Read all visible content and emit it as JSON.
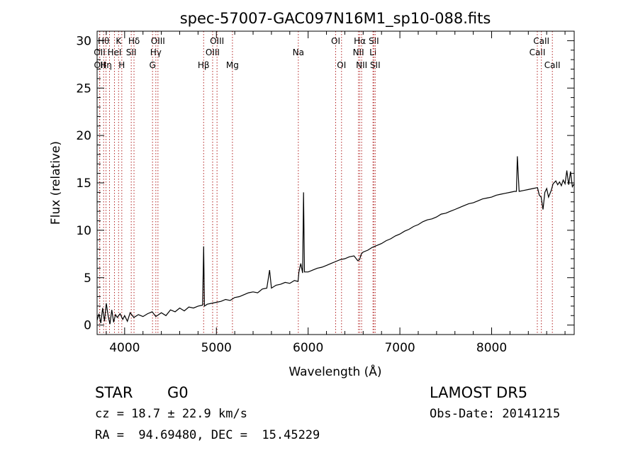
{
  "chart_data": {
    "type": "line",
    "title": "spec-57007-GAC097N16M1_sp10-088.fits",
    "xlabel": "Wavelength (Å)",
    "ylabel": "Flux (relative)",
    "xlim": [
      3700,
      8900
    ],
    "ylim": [
      -1,
      31
    ],
    "xticks": [
      4000,
      5000,
      6000,
      7000,
      8000
    ],
    "yticks": [
      0,
      5,
      10,
      15,
      20,
      25,
      30
    ],
    "line_color": "#000000",
    "marker_color": "#b22222",
    "grid": false,
    "series": [
      {
        "x": [
          3700,
          3720,
          3740,
          3760,
          3780,
          3800,
          3820,
          3840,
          3860,
          3880,
          3900,
          3920,
          3950,
          3980,
          4000,
          4030,
          4060,
          4100,
          4150,
          4200,
          4250,
          4300,
          4340,
          4400,
          4450,
          4500,
          4550,
          4600,
          4650,
          4700,
          4750,
          4800,
          4850,
          4861,
          4870,
          4900,
          4950,
          5000,
          5050,
          5100,
          5150,
          5200,
          5250,
          5300,
          5350,
          5400,
          5450,
          5500,
          5550,
          5580,
          5600,
          5650,
          5700,
          5750,
          5800,
          5850,
          5890,
          5900,
          5920,
          5940,
          5950,
          5960,
          6000,
          6050,
          6100,
          6150,
          6200,
          6250,
          6300,
          6350,
          6400,
          6450,
          6500,
          6540,
          6560,
          6580,
          6600,
          6650,
          6700,
          6750,
          6800,
          6850,
          6900,
          6950,
          7000,
          7050,
          7100,
          7150,
          7200,
          7250,
          7300,
          7350,
          7400,
          7450,
          7500,
          7550,
          7600,
          7650,
          7700,
          7750,
          7800,
          7850,
          7900,
          7950,
          8000,
          8050,
          8100,
          8150,
          8200,
          8250,
          8270,
          8280,
          8300,
          8350,
          8400,
          8450,
          8500,
          8520,
          8540,
          8560,
          8580,
          8600,
          8620,
          8650,
          8670,
          8700,
          8720,
          8740,
          8760,
          8780,
          8800,
          8820,
          8840,
          8860,
          8880,
          8900
        ],
        "y": [
          0.5,
          1.2,
          0.2,
          1.8,
          0.4,
          2.3,
          1.0,
          0.1,
          1.6,
          0.3,
          1.1,
          0.8,
          1.2,
          0.6,
          1.0,
          0.4,
          1.3,
          0.8,
          1.1,
          0.9,
          1.2,
          1.4,
          0.9,
          1.3,
          1.0,
          1.6,
          1.4,
          1.8,
          1.5,
          1.9,
          1.8,
          2.0,
          2.1,
          8.3,
          2.0,
          2.2,
          2.3,
          2.4,
          2.5,
          2.7,
          2.6,
          2.9,
          3.0,
          3.2,
          3.4,
          3.5,
          3.4,
          3.8,
          3.9,
          5.8,
          3.9,
          4.2,
          4.3,
          4.5,
          4.4,
          4.7,
          4.6,
          5.6,
          6.5,
          5.5,
          14.0,
          5.6,
          5.6,
          5.8,
          6.0,
          6.1,
          6.3,
          6.5,
          6.7,
          6.9,
          7.0,
          7.2,
          7.3,
          6.8,
          6.9,
          7.5,
          7.7,
          7.9,
          8.2,
          8.4,
          8.6,
          8.9,
          9.1,
          9.4,
          9.6,
          9.9,
          10.1,
          10.4,
          10.6,
          10.9,
          11.1,
          11.2,
          11.4,
          11.7,
          11.8,
          12.0,
          12.2,
          12.4,
          12.6,
          12.8,
          12.9,
          13.1,
          13.3,
          13.4,
          13.5,
          13.7,
          13.8,
          13.9,
          14.0,
          14.1,
          14.1,
          17.8,
          14.1,
          14.2,
          14.3,
          14.4,
          14.5,
          13.7,
          13.5,
          12.2,
          14.0,
          14.4,
          13.5,
          14.2,
          14.9,
          15.2,
          14.8,
          15.1,
          14.7,
          15.3,
          14.9,
          16.3,
          14.8,
          16.2,
          14.6,
          14.9
        ]
      }
    ],
    "line_markers": [
      {
        "x": 3727,
        "label": "OII",
        "row": 2
      },
      {
        "x": 3729,
        "label": "OII",
        "row": 3
      },
      {
        "x": 3771,
        "label": "Hθ",
        "row": 1
      },
      {
        "x": 3797,
        "label": "Hη",
        "row": 3
      },
      {
        "x": 3835,
        "label": "",
        "row": 0
      },
      {
        "x": 3889,
        "label": "HeI",
        "row": 2
      },
      {
        "x": 3934,
        "label": "K",
        "row": 1
      },
      {
        "x": 3969,
        "label": "H",
        "row": 3
      },
      {
        "x": 4072,
        "label": "SII",
        "row": 2
      },
      {
        "x": 4102,
        "label": "Hδ",
        "row": 1
      },
      {
        "x": 4304,
        "label": "G",
        "row": 3
      },
      {
        "x": 4340,
        "label": "Hγ",
        "row": 2
      },
      {
        "x": 4363,
        "label": "OIII",
        "row": 1
      },
      {
        "x": 4861,
        "label": "Hβ",
        "row": 3
      },
      {
        "x": 4959,
        "label": "OIII",
        "row": 2
      },
      {
        "x": 5007,
        "label": "OIII",
        "row": 1
      },
      {
        "x": 5175,
        "label": "Mg",
        "row": 3
      },
      {
        "x": 5893,
        "label": "Na",
        "row": 2
      },
      {
        "x": 6300,
        "label": "OI",
        "row": 1
      },
      {
        "x": 6364,
        "label": "OI",
        "row": 3
      },
      {
        "x": 6548,
        "label": "NII",
        "row": 2
      },
      {
        "x": 6563,
        "label": "Hα",
        "row": 1
      },
      {
        "x": 6583,
        "label": "NII",
        "row": 3
      },
      {
        "x": 6707,
        "label": "Li",
        "row": 2
      },
      {
        "x": 6716,
        "label": "SII",
        "row": 1
      },
      {
        "x": 6731,
        "label": "SII",
        "row": 3
      },
      {
        "x": 8498,
        "label": "CaII",
        "row": 2
      },
      {
        "x": 8542,
        "label": "CaII",
        "row": 1
      },
      {
        "x": 8662,
        "label": "CaII",
        "row": 3
      }
    ]
  },
  "info": {
    "object_class": "STAR",
    "subclass": "G0",
    "survey": "LAMOST DR5",
    "cz": "cz = 18.7 ± 22.9 km/s",
    "obs_date": "Obs-Date: 20141215",
    "coords": "RA =  94.69480, DEC =  15.45229"
  }
}
